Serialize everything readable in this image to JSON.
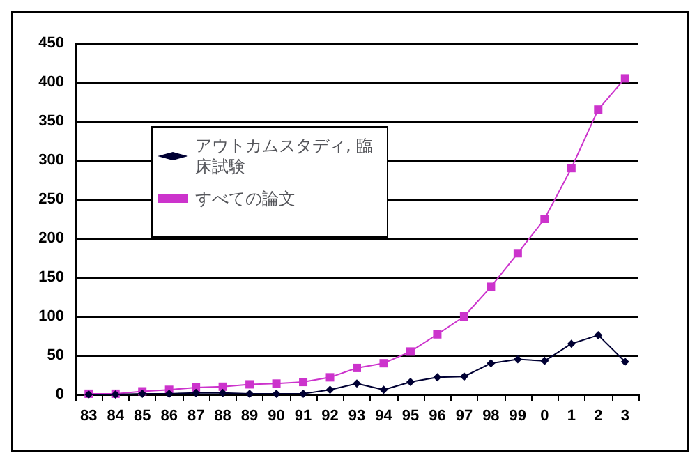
{
  "chart_data": {
    "type": "line",
    "categories": [
      "83",
      "84",
      "85",
      "86",
      "87",
      "88",
      "89",
      "90",
      "91",
      "92",
      "93",
      "94",
      "95",
      "96",
      "97",
      "98",
      "99",
      "0",
      "1",
      "2",
      "3"
    ],
    "series": [
      {
        "name": "アウトカムスタディ, 臨床試験",
        "color": "#000033",
        "marker": "diamond",
        "values": [
          0,
          0,
          1,
          1,
          2,
          2,
          1,
          1,
          1,
          6,
          14,
          6,
          16,
          22,
          23,
          40,
          45,
          43,
          65,
          76,
          42
        ]
      },
      {
        "name": "すべての論文",
        "color": "#cc33cc",
        "marker": "square",
        "values": [
          1,
          1,
          4,
          6,
          9,
          10,
          13,
          14,
          16,
          22,
          34,
          40,
          55,
          77,
          100,
          138,
          181,
          225,
          290,
          365,
          405
        ]
      }
    ],
    "ylim": [
      0,
      450
    ],
    "yticks": [
      0,
      50,
      100,
      150,
      200,
      250,
      300,
      350,
      400,
      450
    ],
    "grid": "y",
    "legend": "top left",
    "line_style": "solid"
  }
}
